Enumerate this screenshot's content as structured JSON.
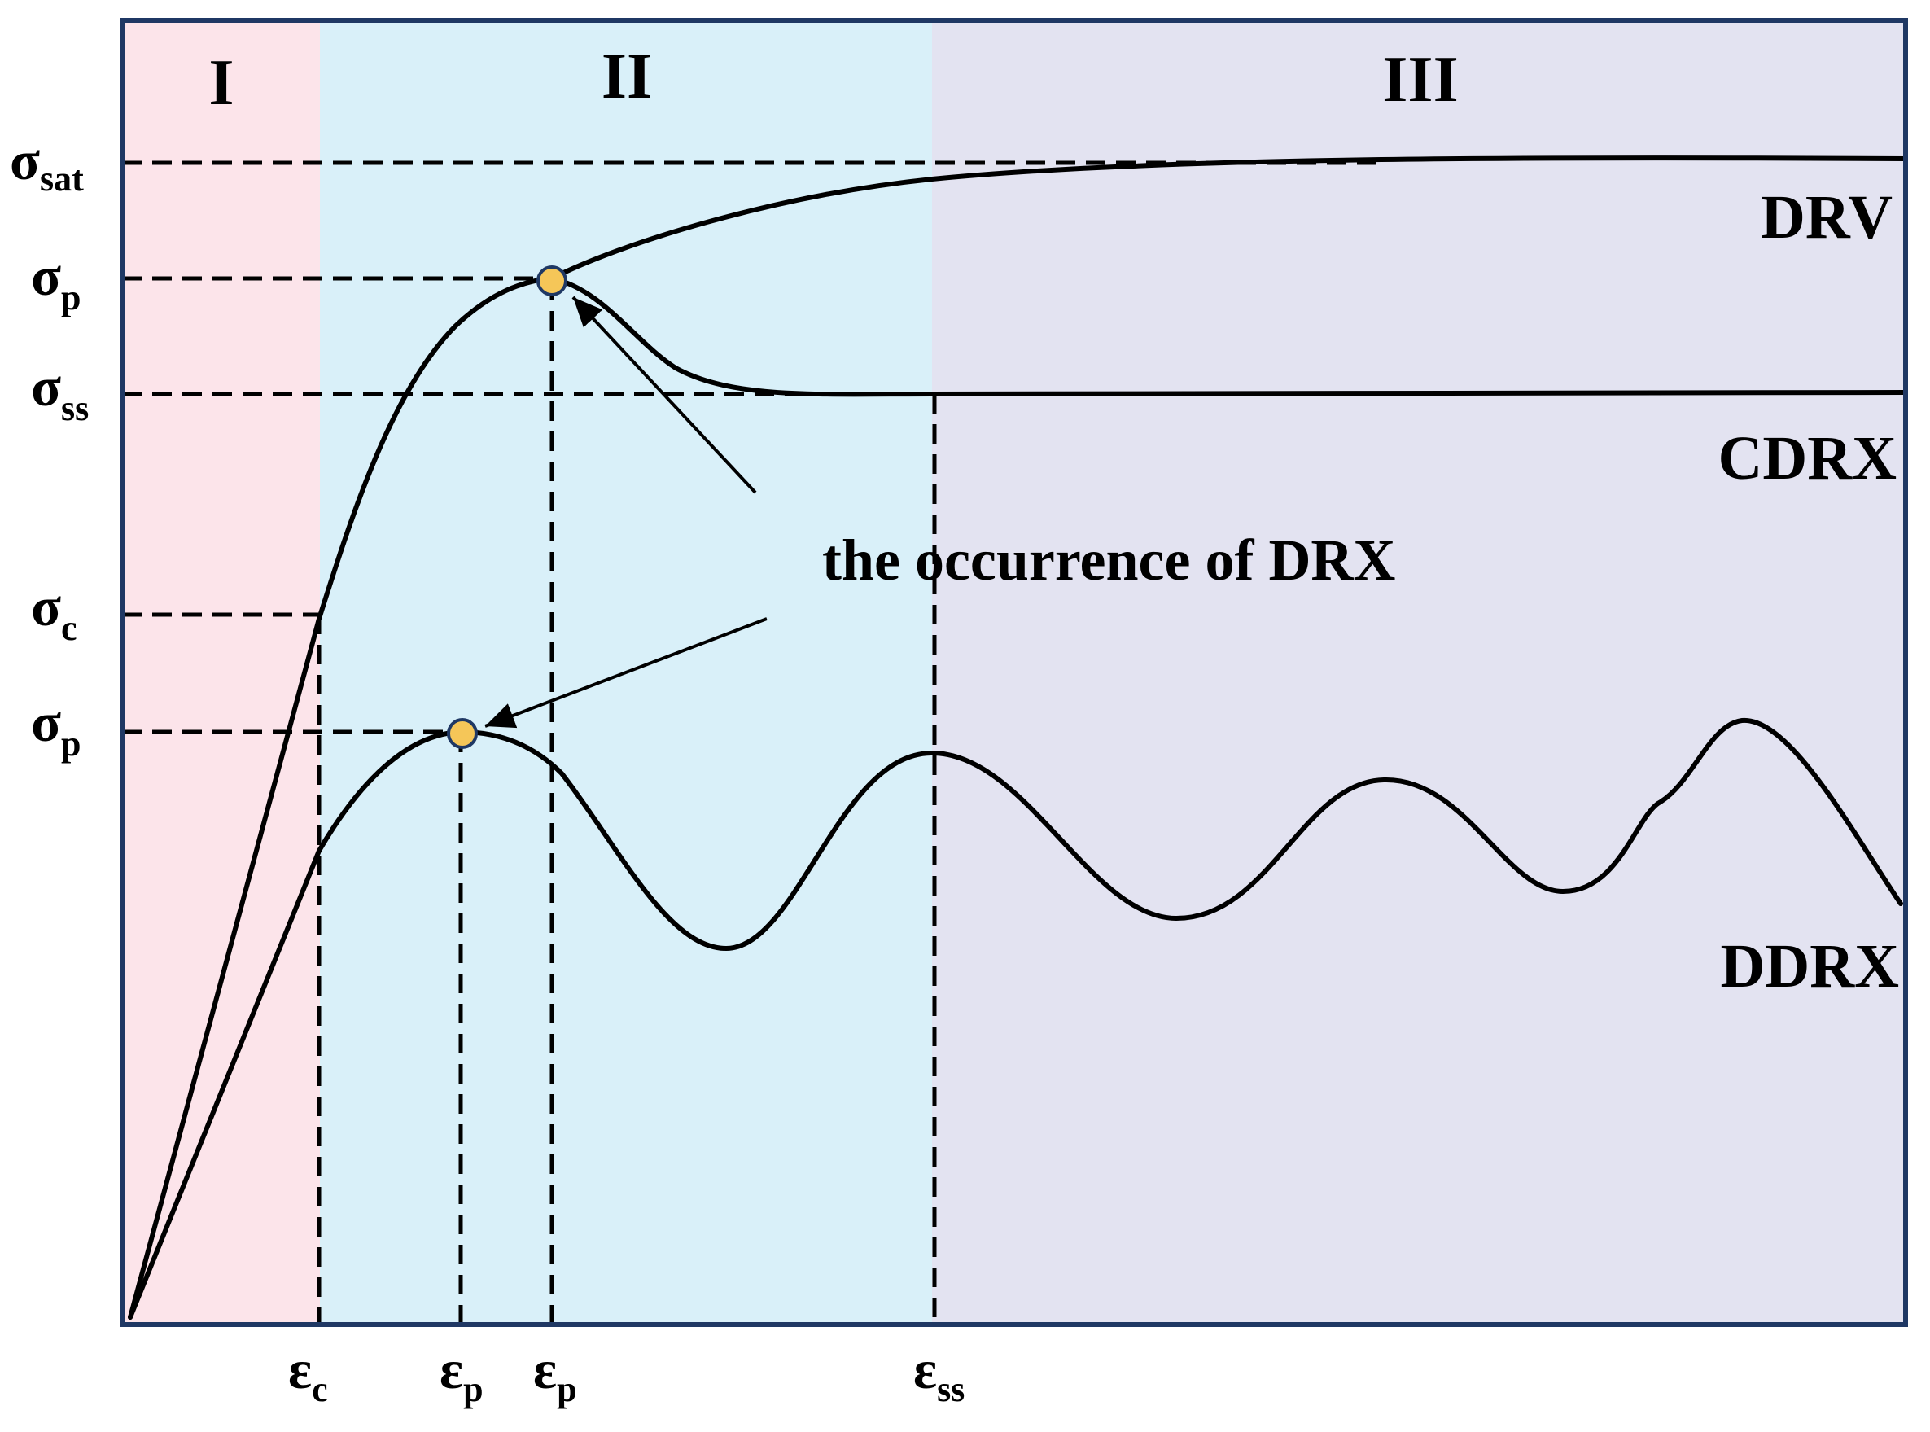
{
  "regions": {
    "stage1": {
      "label": "I",
      "color": "#fce4ea"
    },
    "stage2": {
      "label": "II",
      "color": "#d9f0f9"
    },
    "stage3": {
      "label": "III",
      "color": "#e3e3f1"
    }
  },
  "y_labels": {
    "sat": {
      "base": "σ",
      "sub": "sat"
    },
    "p1": {
      "base": "σ",
      "sub": "p"
    },
    "ss": {
      "base": "σ",
      "sub": "ss"
    },
    "c": {
      "base": "σ",
      "sub": "c"
    },
    "p2": {
      "base": "σ",
      "sub": "p"
    }
  },
  "x_labels": {
    "c": {
      "base": "ε",
      "sub": "c"
    },
    "p1": {
      "base": "ε",
      "sub": "p"
    },
    "p2": {
      "base": "ε",
      "sub": "p"
    },
    "ss": {
      "base": "ε",
      "sub": "ss"
    }
  },
  "curves": {
    "drv": "DRV",
    "cdrx": "CDRX",
    "ddrx": "DDRX"
  },
  "annotation": "the occurrence of DRX",
  "colors": {
    "frame": "#1f3864",
    "peak_marker": "#f5c658",
    "peak_marker_stroke": "#1f3864"
  }
}
